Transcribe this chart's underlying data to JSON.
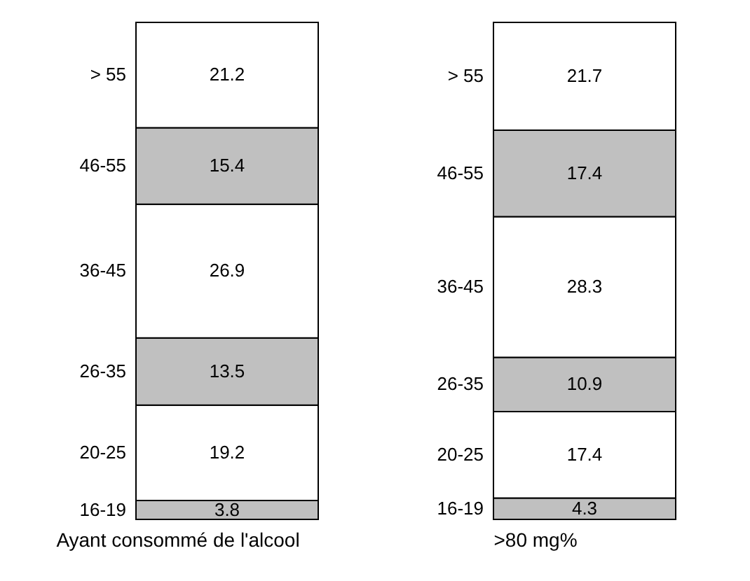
{
  "chart_data": [
    {
      "type": "bar",
      "stacked": true,
      "categories": [
        null
      ],
      "xlabel": "Ayant consommé de l'alcool",
      "data_labels": true,
      "legend": false,
      "series": [
        {
          "name": "16-19",
          "color": "#c0c0c0",
          "values": [
            3.8
          ]
        },
        {
          "name": "20-25",
          "color": "#ffffff",
          "values": [
            19.2
          ]
        },
        {
          "name": "26-35",
          "color": "#c0c0c0",
          "values": [
            13.5
          ]
        },
        {
          "name": "36-45",
          "color": "#ffffff",
          "values": [
            26.9
          ]
        },
        {
          "name": "46-55",
          "color": "#c0c0c0",
          "values": [
            15.4
          ]
        },
        {
          "name": "> 55",
          "color": "#ffffff",
          "values": [
            21.2
          ]
        }
      ]
    },
    {
      "type": "bar",
      "stacked": true,
      "categories": [
        null
      ],
      "xlabel": ">80 mg%",
      "data_labels": true,
      "legend": false,
      "series": [
        {
          "name": "16-19",
          "color": "#c0c0c0",
          "values": [
            4.3
          ]
        },
        {
          "name": "20-25",
          "color": "#ffffff",
          "values": [
            17.4
          ]
        },
        {
          "name": "26-35",
          "color": "#c0c0c0",
          "values": [
            10.9
          ]
        },
        {
          "name": "36-45",
          "color": "#ffffff",
          "values": [
            28.3
          ]
        },
        {
          "name": "46-55",
          "color": "#c0c0c0",
          "values": [
            17.4
          ]
        },
        {
          "name": "> 55",
          "color": "#ffffff",
          "values": [
            21.7
          ]
        }
      ]
    }
  ]
}
